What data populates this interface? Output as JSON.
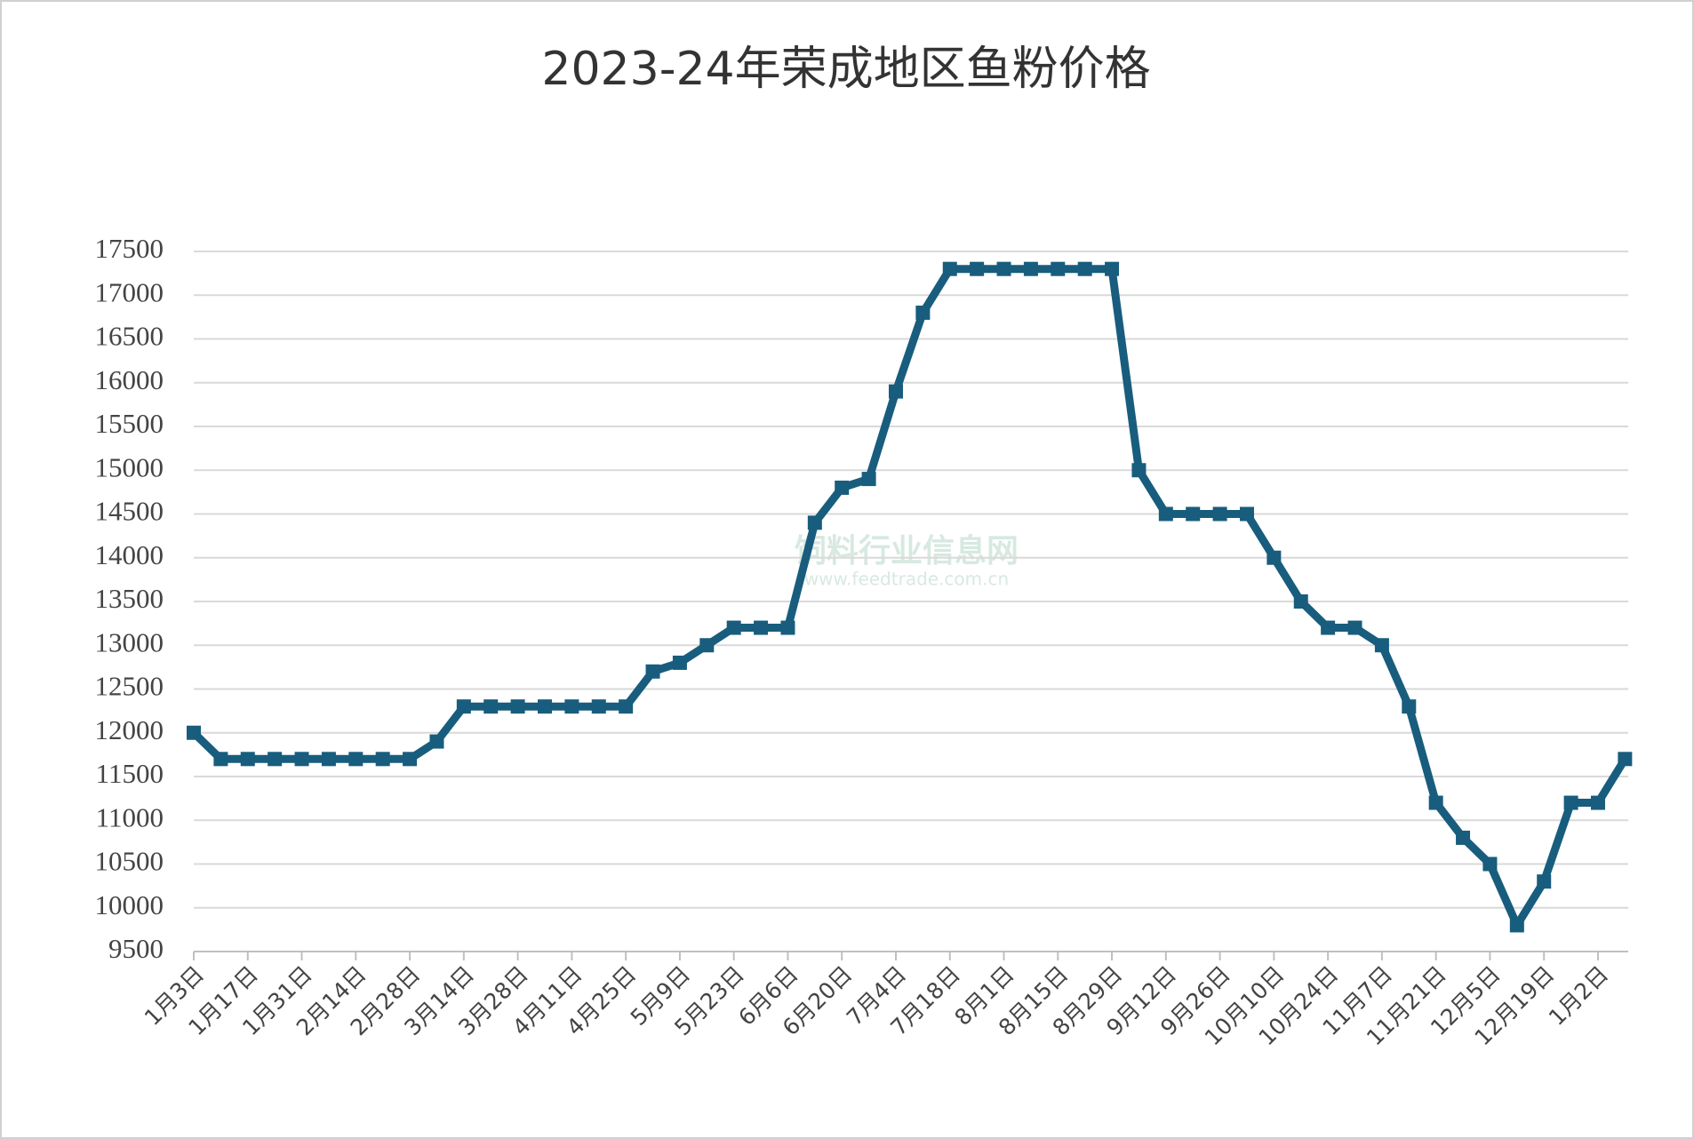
{
  "chart_data": {
    "type": "line",
    "title": "2023-24年荣成地区鱼粉价格",
    "watermark": [
      "饲料行业信息网",
      "www.feedtrade.com.cn"
    ],
    "categories": [
      "1月3日",
      null,
      "1月17日",
      null,
      "1月31日",
      null,
      "2月14日",
      null,
      "2月28日",
      null,
      "3月14日",
      null,
      "3月28日",
      null,
      "4月11日",
      null,
      "4月25日",
      null,
      "5月9日",
      null,
      "5月23日",
      null,
      "6月6日",
      null,
      "6月20日",
      null,
      "7月4日",
      null,
      "7月18日",
      null,
      "8月1日",
      null,
      "8月15日",
      null,
      "8月29日",
      null,
      "9月12日",
      null,
      "9月26日",
      null,
      "10月10日",
      null,
      "10月24日",
      null,
      "11月7日",
      null,
      "11月21日",
      null,
      "12月5日",
      null,
      "12月19日",
      null,
      "1月2日",
      null
    ],
    "series": [
      {
        "color": "#185d7d",
        "values": [
          12000,
          11700,
          11700,
          11700,
          11700,
          11700,
          11700,
          11700,
          11700,
          11900,
          12300,
          12300,
          12300,
          12300,
          12300,
          12300,
          12300,
          12700,
          12800,
          13000,
          13200,
          13200,
          13200,
          14400,
          14800,
          14900,
          15900,
          16800,
          17300,
          17300,
          17300,
          17300,
          17300,
          17300,
          17300,
          15000,
          14500,
          14500,
          14500,
          14500,
          14000,
          13500,
          13200,
          13200,
          13000,
          12300,
          11200,
          10800,
          10500,
          9800,
          10300,
          11200,
          11200,
          11700
        ]
      }
    ],
    "ylim": [
      9500,
      17500
    ],
    "yticks": [
      9500,
      10000,
      10500,
      11000,
      11500,
      12000,
      12500,
      13000,
      13500,
      14000,
      14500,
      15000,
      15500,
      16000,
      16500,
      17000,
      17500
    ],
    "grid": true
  }
}
